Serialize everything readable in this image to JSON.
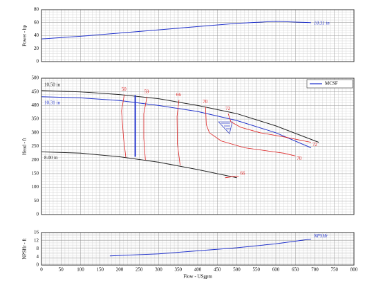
{
  "chart_data": [
    {
      "type": "line",
      "ylabel": "Power - hp",
      "ylim": [
        0,
        80
      ],
      "yticks": [
        0,
        20,
        40,
        60,
        80
      ],
      "grid": true,
      "series": [
        {
          "name": "10.31 in",
          "color": "#2233cc",
          "x": [
            0,
            100,
            200,
            300,
            400,
            500,
            600,
            690
          ],
          "values": [
            35,
            39,
            44,
            49,
            54,
            59,
            62,
            60
          ]
        }
      ]
    },
    {
      "type": "line",
      "ylabel": "Head - ft",
      "ylim": [
        0,
        500
      ],
      "yticks": [
        0,
        50,
        100,
        150,
        200,
        250,
        300,
        350,
        400,
        450,
        500
      ],
      "grid": true,
      "legend": {
        "label": "MCSF",
        "color": "#2233cc",
        "position": "upper right"
      },
      "series": [
        {
          "name": "10.50 in",
          "color": "#222222",
          "x": [
            0,
            100,
            200,
            300,
            400,
            500,
            600,
            710
          ],
          "values": [
            455,
            450,
            440,
            425,
            400,
            370,
            325,
            265
          ]
        },
        {
          "name": "10.31 in",
          "color": "#2233cc",
          "x": [
            0,
            100,
            200,
            300,
            400,
            500,
            600,
            690
          ],
          "values": [
            432,
            428,
            418,
            400,
            378,
            345,
            300,
            245
          ]
        },
        {
          "name": "8.00 in",
          "color": "#222222",
          "x": [
            0,
            100,
            200,
            300,
            400,
            500
          ],
          "values": [
            230,
            225,
            212,
            192,
            165,
            135
          ]
        }
      ],
      "mcsf_line": {
        "color": "#2233cc",
        "x": [
          240,
          240
        ],
        "values": [
          438,
          212
        ]
      },
      "efficiency": {
        "color": "#dd2222",
        "contours": [
          {
            "start_label": "50",
            "x": [
              212,
              205,
              210,
              216
            ],
            "values": [
              440,
              380,
              280,
              210
            ]
          },
          {
            "start_label": "59",
            "x": [
              270,
              262,
              262,
              266
            ],
            "values": [
              432,
              370,
              280,
              200
            ]
          },
          {
            "start_label": "66",
            "x": [
              352,
              347,
              348,
              355
            ],
            "values": [
              420,
              360,
              260,
              180
            ]
          },
          {
            "start_label": "70",
            "end_label": "70",
            "x": [
              420,
              422,
              430,
              460,
              520,
              620,
              650
            ],
            "values": [
              395,
              330,
              300,
              270,
              245,
              225,
              215
            ]
          },
          {
            "start_label": "72",
            "end_label": "72",
            "x": [
              478,
              485,
              510,
              560,
              620,
              690
            ],
            "values": [
              370,
              340,
              320,
              300,
              285,
              265
            ]
          },
          {
            "end_label": "66",
            "x": [
              470,
              490,
              505
            ],
            "values": [
              135,
              139,
              140
            ]
          }
        ]
      }
    },
    {
      "type": "line",
      "ylabel": "NPSHr - ft",
      "xlabel": "Flow - USgpm",
      "ylim": [
        0,
        16
      ],
      "yticks": [
        0,
        4,
        8,
        12,
        16
      ],
      "grid": true,
      "xlim": [
        0,
        800
      ],
      "xticks": [
        0,
        50,
        100,
        150,
        200,
        250,
        300,
        350,
        400,
        450,
        500,
        550,
        600,
        650,
        700,
        750,
        800
      ],
      "series": [
        {
          "name": "NPSHr",
          "color": "#2233cc",
          "x": [
            175,
            300,
            400,
            500,
            600,
            690
          ],
          "values": [
            4.5,
            5.5,
            7,
            8.5,
            10.5,
            12.8
          ]
        }
      ]
    }
  ]
}
